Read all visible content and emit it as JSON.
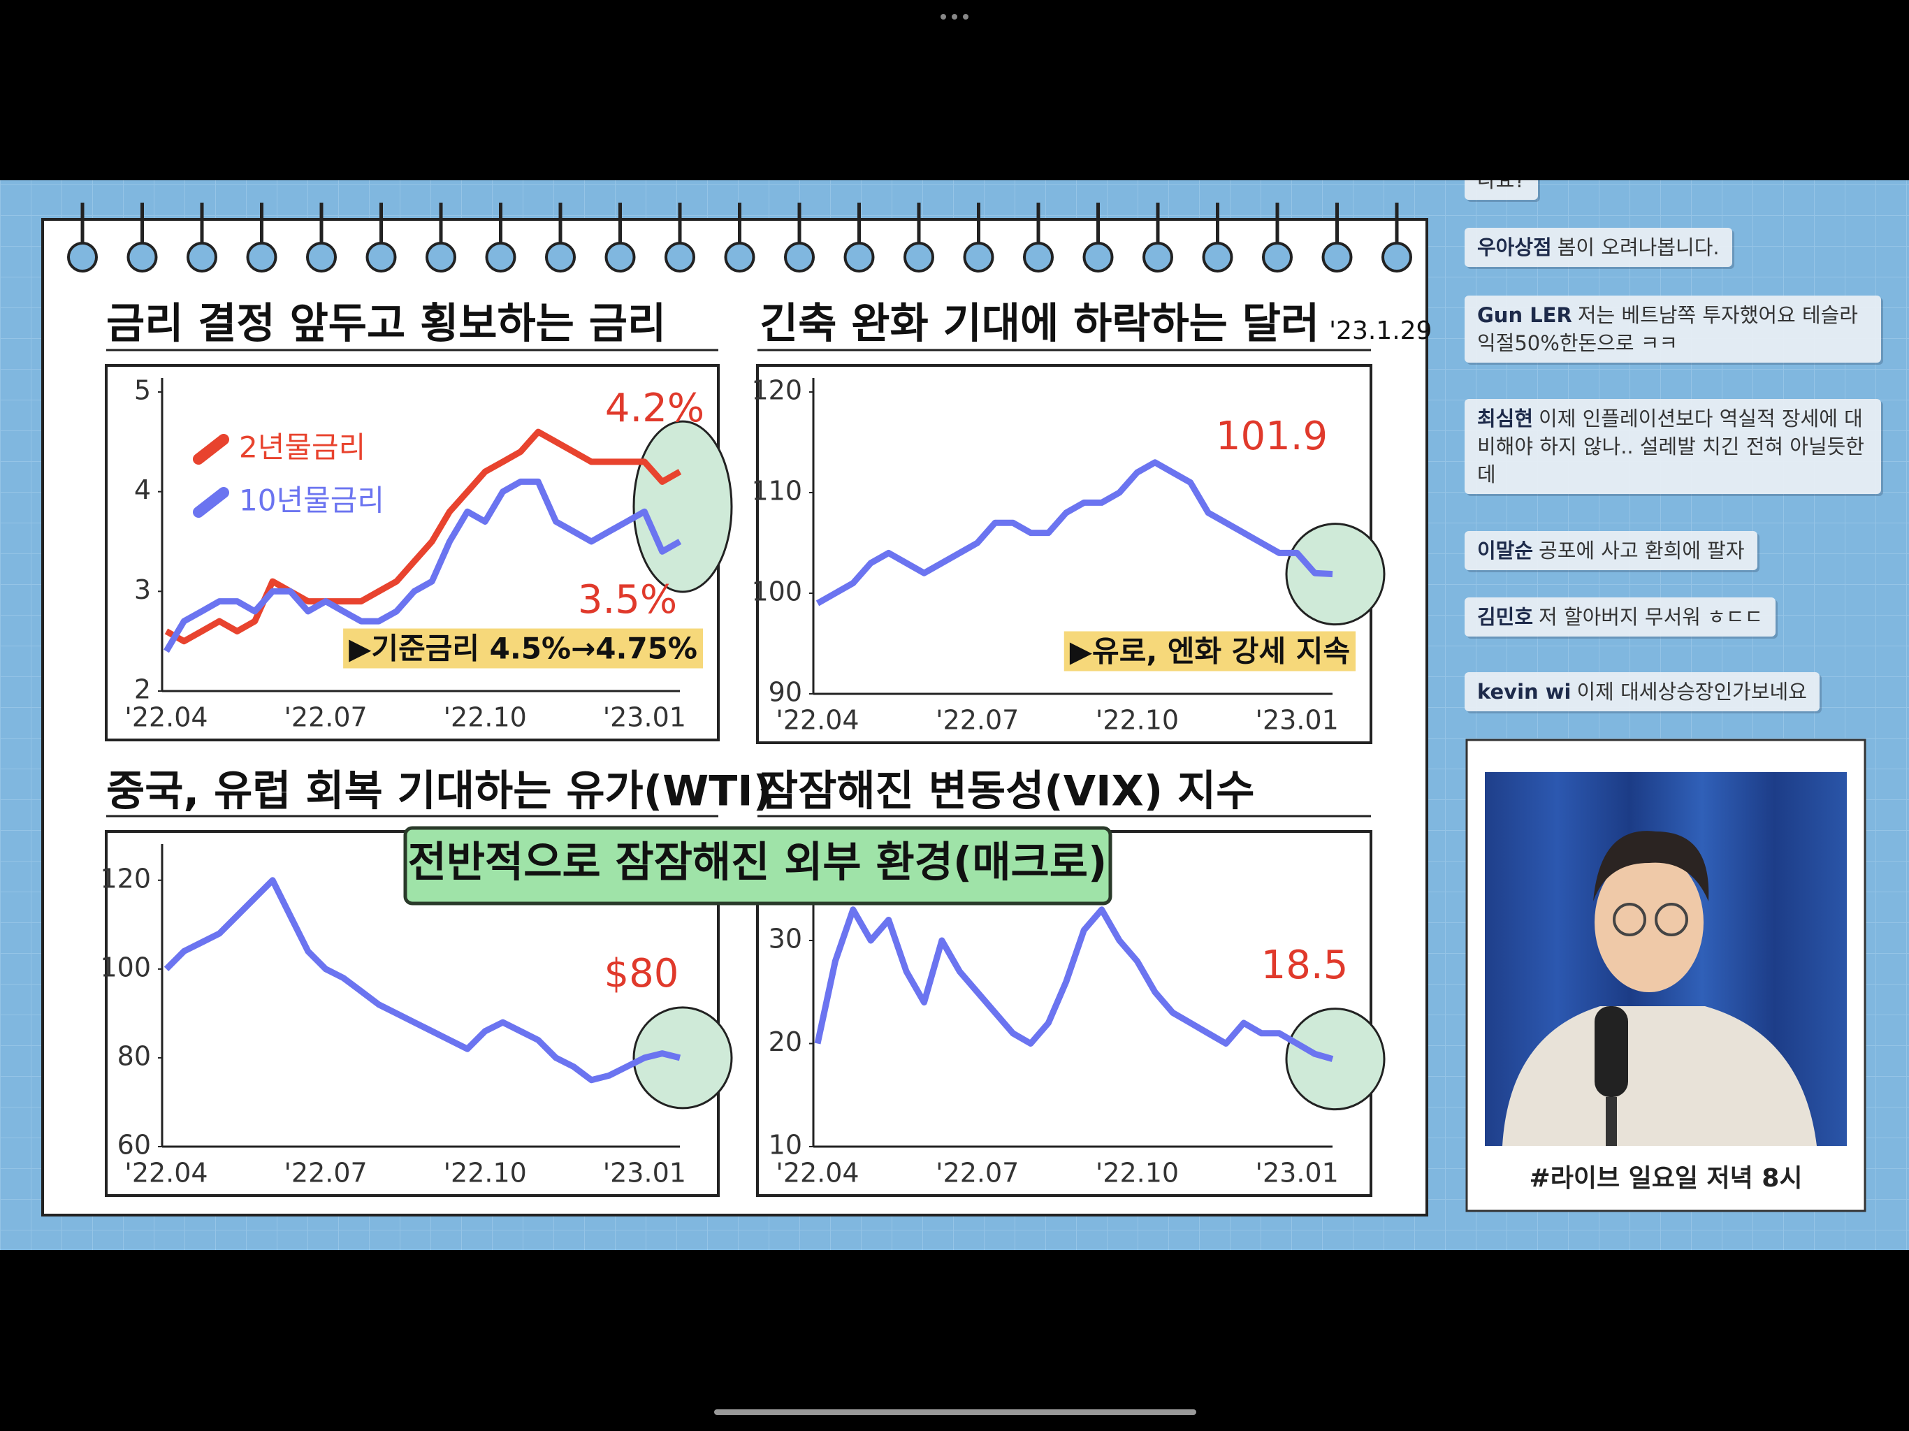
{
  "chart_data": [
    {
      "type": "line",
      "title": "금리 결정 앞두고 횡보하는 금리",
      "categories": [
        "'22.04",
        null,
        null,
        null,
        null,
        null,
        null,
        null,
        null,
        "'22.07",
        null,
        null,
        null,
        null,
        null,
        null,
        null,
        null,
        "'22.10",
        null,
        null,
        null,
        null,
        null,
        null,
        null,
        null,
        "'23.01",
        null,
        null
      ],
      "series": [
        {
          "name": "2년물금리",
          "color": "#e8432e",
          "values": [
            2.6,
            2.5,
            2.6,
            2.7,
            2.6,
            2.7,
            3.1,
            3.0,
            2.9,
            2.9,
            2.9,
            2.9,
            3.0,
            3.1,
            3.3,
            3.5,
            3.8,
            4.0,
            4.2,
            4.3,
            4.4,
            4.6,
            4.5,
            4.4,
            4.3,
            4.3,
            4.3,
            4.3,
            4.1,
            4.2
          ],
          "value_labels": [
            null,
            null,
            null,
            null,
            null,
            null,
            null,
            null,
            null,
            null,
            null,
            null,
            null,
            null,
            null,
            null,
            null,
            null,
            null,
            null,
            null,
            null,
            null,
            null,
            null,
            null,
            null,
            null,
            null,
            "4.2%"
          ]
        },
        {
          "name": "10년물금리",
          "color": "#6b74f0",
          "values": [
            2.4,
            2.7,
            2.8,
            2.9,
            2.9,
            2.8,
            3.0,
            3.0,
            2.8,
            2.9,
            2.8,
            2.7,
            2.7,
            2.8,
            3.0,
            3.1,
            3.5,
            3.8,
            3.7,
            4.0,
            4.1,
            4.1,
            3.7,
            3.6,
            3.5,
            3.6,
            3.7,
            3.8,
            3.4,
            3.5
          ],
          "value_labels": [
            null,
            null,
            null,
            null,
            null,
            null,
            null,
            null,
            null,
            null,
            null,
            null,
            null,
            null,
            null,
            null,
            null,
            null,
            null,
            null,
            null,
            null,
            null,
            null,
            null,
            null,
            null,
            null,
            null,
            "3.5%"
          ]
        }
      ],
      "ylim": [
        2,
        5
      ],
      "yticks": [
        2,
        3,
        4,
        5
      ],
      "note": "▶기준금리 4.5%→4.75%"
    },
    {
      "type": "line",
      "title": "긴축 완화 기대에 하락하는 달러",
      "subtitle": "'23.1.29",
      "categories": [
        "'22.04",
        null,
        null,
        null,
        null,
        null,
        null,
        null,
        null,
        "'22.07",
        null,
        null,
        null,
        null,
        null,
        null,
        null,
        null,
        "'22.10",
        null,
        null,
        null,
        null,
        null,
        null,
        null,
        null,
        "'23.01",
        null,
        null
      ],
      "series": [
        {
          "color": "#6b74f0",
          "values": [
            99,
            100,
            101,
            103,
            104,
            103,
            102,
            103,
            104,
            105,
            107,
            107,
            106,
            106,
            108,
            109,
            109,
            110,
            112,
            113,
            112,
            111,
            108,
            107,
            106,
            105,
            104,
            104,
            102,
            101.9
          ],
          "value_labels": [
            null,
            null,
            null,
            null,
            null,
            null,
            null,
            null,
            null,
            null,
            null,
            null,
            null,
            null,
            null,
            null,
            null,
            null,
            null,
            null,
            null,
            null,
            null,
            null,
            null,
            null,
            null,
            null,
            null,
            "101.9"
          ]
        }
      ],
      "ylim": [
        90,
        120
      ],
      "yticks": [
        90,
        100,
        110,
        120
      ],
      "note": "▶유로, 엔화 강세 지속"
    },
    {
      "type": "line",
      "title": "중국, 유럽 회복 기대하는 유가(WTI)",
      "categories": [
        "'22.04",
        null,
        null,
        null,
        null,
        null,
        null,
        null,
        null,
        "'22.07",
        null,
        null,
        null,
        null,
        null,
        null,
        null,
        null,
        "'22.10",
        null,
        null,
        null,
        null,
        null,
        null,
        null,
        null,
        "'23.01",
        null,
        null
      ],
      "series": [
        {
          "color": "#6b74f0",
          "values": [
            100,
            104,
            106,
            108,
            112,
            116,
            120,
            112,
            104,
            100,
            98,
            95,
            92,
            90,
            88,
            86,
            84,
            82,
            86,
            88,
            86,
            84,
            80,
            78,
            75,
            76,
            78,
            80,
            81,
            80
          ],
          "value_labels": [
            null,
            null,
            null,
            null,
            null,
            null,
            null,
            null,
            null,
            null,
            null,
            null,
            null,
            null,
            null,
            null,
            null,
            null,
            null,
            null,
            null,
            null,
            null,
            null,
            null,
            null,
            null,
            null,
            null,
            "$80"
          ]
        }
      ],
      "ylim": [
        60,
        125
      ],
      "yticks": [
        60,
        80,
        100,
        120
      ]
    },
    {
      "type": "line",
      "title": "잠잠해진 변동성(VIX) 지수",
      "categories": [
        "'22.04",
        null,
        null,
        null,
        null,
        null,
        null,
        null,
        null,
        "'22.07",
        null,
        null,
        null,
        null,
        null,
        null,
        null,
        null,
        "'22.10",
        null,
        null,
        null,
        null,
        null,
        null,
        null,
        null,
        "'23.01",
        null,
        null
      ],
      "series": [
        {
          "color": "#6b74f0",
          "values": [
            20,
            28,
            33,
            30,
            32,
            27,
            24,
            30,
            27,
            25,
            23,
            21,
            20,
            22,
            26,
            31,
            33,
            30,
            28,
            25,
            23,
            22,
            21,
            20,
            22,
            21,
            21,
            20,
            19,
            18.5
          ],
          "value_labels": [
            null,
            null,
            null,
            null,
            null,
            null,
            null,
            null,
            null,
            null,
            null,
            null,
            null,
            null,
            null,
            null,
            null,
            null,
            null,
            null,
            null,
            null,
            null,
            null,
            null,
            null,
            null,
            null,
            null,
            "18.5"
          ]
        }
      ],
      "ylim": [
        10,
        38
      ],
      "yticks": [
        10,
        20,
        30
      ]
    }
  ],
  "overlay": {
    "text": "전반적으로 잠잠해진 외부 환경(매크로)"
  },
  "chat": {
    "top_fragment": "나요?",
    "messages": [
      {
        "user": "우아상점",
        "text": "봄이 오려나봅니다."
      },
      {
        "user": "Gun LER",
        "text": "저는 베트남쪽 투자했어요 테슬라 익절50%한돈으로 ㅋㅋ"
      },
      {
        "user": "최심현",
        "text": "이제 인플레이션보다 역실적 장세에 대비해야 하지 않나.. 설레발 치긴 전혀 아닐듯한데"
      },
      {
        "user": "이말순",
        "text": "공포에 사고 환희에 팔자"
      },
      {
        "user": "김민호",
        "text": "저 할아버지 무서워 ㅎㄷㄷ"
      },
      {
        "user": "kevin wi",
        "text": "이제 대세상승장인가보네요"
      }
    ]
  },
  "stream": {
    "caption": "#라이브 일요일 저녁 8시"
  }
}
